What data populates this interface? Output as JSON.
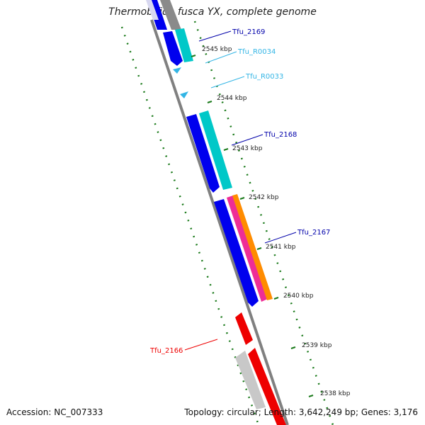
{
  "title": "Thermobifida fusca YX, complete genome",
  "accession": "Accession: NC_007333",
  "summary": "Topology: circular; Length: 3,642,249 bp; Genes: 3,176",
  "colors": {
    "backbone": "#808080",
    "cds_dark_blue": "#0000ee",
    "cds_cyan": "#00c8c8",
    "rna_light_blue": "#33b5e5",
    "red": "#ee0000",
    "gray": "#c8c8c8",
    "magenta": "#ee2d96",
    "orange": "#ff8c00",
    "tick_green": "#1a7a1a"
  },
  "ticks": [
    "2545 kbp",
    "2544 kbp",
    "2543 kbp",
    "2542 kbp",
    "2541 kbp",
    "2540 kbp",
    "2539 kbp",
    "2538 kbp"
  ],
  "gene_labels": [
    {
      "text": "Tfu_2169",
      "color": "#0000aa"
    },
    {
      "text": "Tfu_R0034",
      "color": "#33b5e5"
    },
    {
      "text": "Tfu_R0033",
      "color": "#33b5e5"
    },
    {
      "text": "Tfu_2168",
      "color": "#0000aa"
    },
    {
      "text": "Tfu_2167",
      "color": "#0000aa"
    },
    {
      "text": "Tfu_2166",
      "color": "#ee0000"
    }
  ]
}
